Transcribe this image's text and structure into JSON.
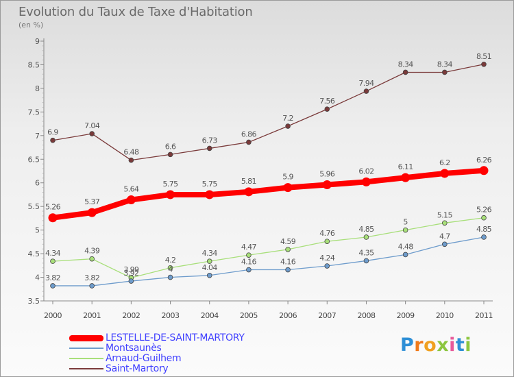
{
  "title": "Evolution du Taux de Taxe d'Habitation",
  "subtitle": "(en %)",
  "logo": {
    "letters": [
      "P",
      "r",
      "o",
      "x",
      "i",
      "t",
      "i"
    ],
    "colors": [
      "#2e8fd6",
      "#f07a1a",
      "#f0a020",
      "#8cc63f",
      "#e85a9a",
      "#2e8fd6",
      "#8cc63f"
    ]
  },
  "chart_data": {
    "type": "line",
    "title": "Evolution du Taux de Taxe d'Habitation",
    "ylabel": "(en %)",
    "xlabel": "",
    "x": [
      "2000",
      "2001",
      "2002",
      "2003",
      "2004",
      "2005",
      "2006",
      "2007",
      "2008",
      "2009",
      "2010",
      "2011"
    ],
    "ylim": [
      3.5,
      9
    ],
    "yticks": [
      "3.5",
      "4",
      "4.5",
      "5",
      "5.5",
      "6",
      "6.5",
      "7",
      "7.5",
      "8",
      "8.5",
      "9"
    ],
    "grid": false,
    "legend_position": "bottom-left",
    "series": [
      {
        "name": "LESTELLE-DE-SAINT-MARTORY",
        "color": "#ff0000",
        "values": [
          5.26,
          5.37,
          5.64,
          5.75,
          5.75,
          5.81,
          5.9,
          5.96,
          6.02,
          6.11,
          6.2,
          6.26
        ],
        "labels": [
          "5.26",
          "5.37",
          "5.64",
          "5.75",
          "5.75",
          "5.81",
          "5.9",
          "5.96",
          "6.02",
          "6.11",
          "6.2",
          "6.26"
        ]
      },
      {
        "name": "Montsaunès",
        "color": "#6e9ccc",
        "values": [
          3.82,
          3.82,
          3.92,
          4,
          4.04,
          4.16,
          4.16,
          4.24,
          4.35,
          4.48,
          4.7,
          4.85
        ],
        "labels": [
          "3.82",
          "3.82",
          "3.92",
          "4",
          "4.04",
          "4.16",
          "4.16",
          "4.24",
          "4.35",
          "4.48",
          "4.7",
          "4.85"
        ]
      },
      {
        "name": "Arnaud-Guilhem",
        "color": "#a8df7a",
        "values": [
          4.34,
          4.39,
          3.99,
          4.2,
          4.34,
          4.47,
          4.59,
          4.76,
          4.85,
          5,
          5.15,
          5.26
        ],
        "labels": [
          "4.34",
          "4.39",
          "3.99",
          "4.2",
          "4.34",
          "4.47",
          "4.59",
          "4.76",
          "4.85",
          "5",
          "5.15",
          "5.26"
        ]
      },
      {
        "name": "Saint-Martory",
        "color": "#7a3a3a",
        "values": [
          6.9,
          7.04,
          6.48,
          6.6,
          6.73,
          6.86,
          7.2,
          7.56,
          7.94,
          8.34,
          8.34,
          8.51
        ],
        "labels": [
          "6.9",
          "7.04",
          "6.48",
          "6.6",
          "6.73",
          "6.86",
          "7.2",
          "7.56",
          "7.94",
          "8.34",
          "8.34",
          "8.51"
        ]
      }
    ]
  }
}
